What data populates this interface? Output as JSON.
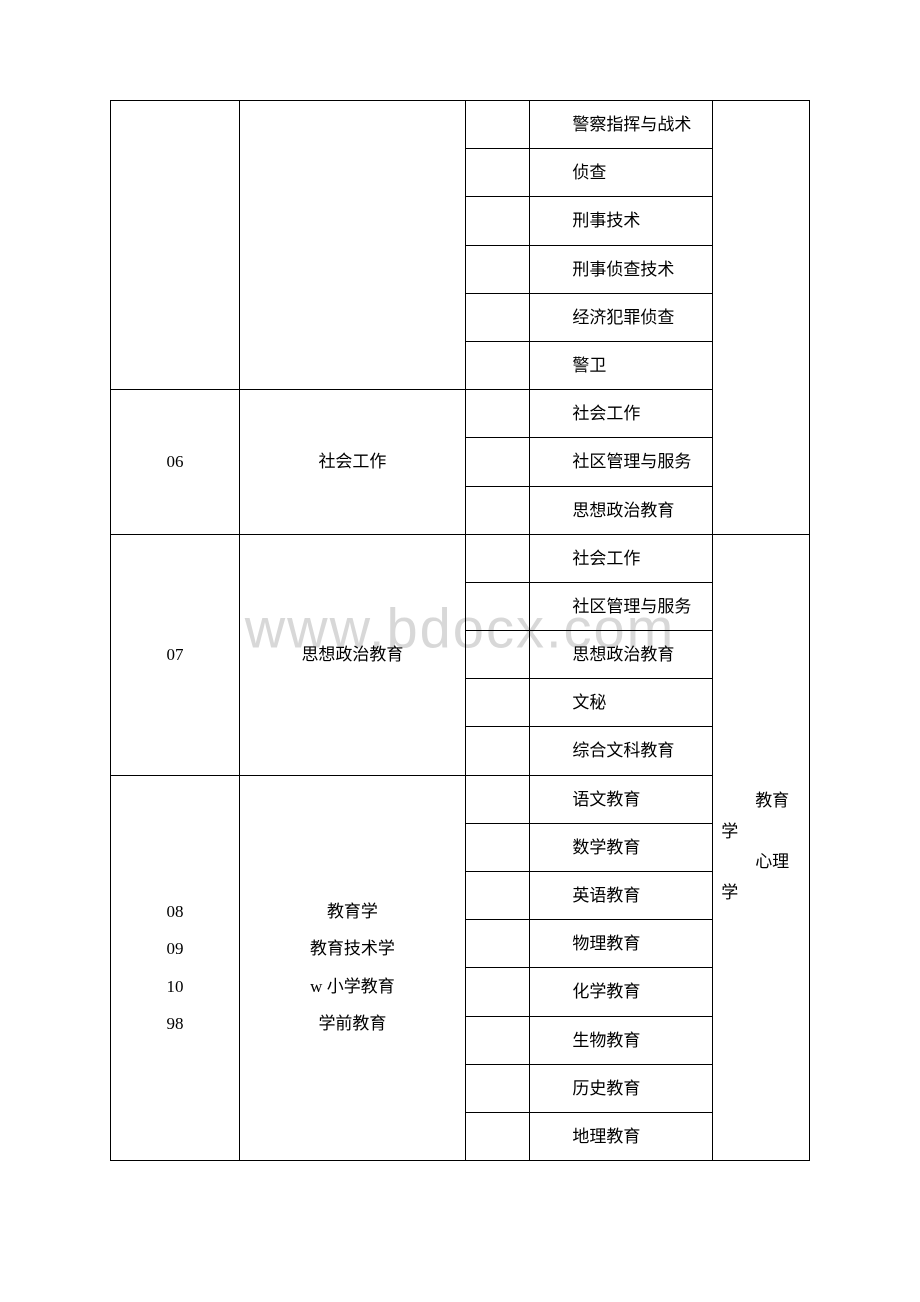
{
  "watermark": "www.bdocx.com",
  "groups": [
    {
      "code": "",
      "major": "",
      "subs": [
        "警察指挥与战术",
        "侦查",
        "刑事技术",
        "刑事侦查技术",
        "经济犯罪侦查",
        "警卫"
      ],
      "note": null
    },
    {
      "code": "06",
      "major": "社会工作",
      "subs": [
        "社会工作",
        "社区管理与服务",
        "思想政治教育"
      ],
      "note": null
    },
    {
      "code": "07",
      "major": "思想政治教育",
      "subs": [
        "社会工作",
        "社区管理与服务",
        "思想政治教育",
        "文秘",
        "综合文科教育"
      ],
      "note": {
        "text": "教育学\n心理学",
        "span": 13
      }
    },
    {
      "code": "08\n09\n10\n98",
      "major": "教育学\n教育技术学\nw 小学教育\n学前教育",
      "subs": [
        "语文教育",
        "数学教育",
        "英语教育",
        "物理教育",
        "化学教育",
        "生物教育",
        "历史教育",
        "地理教育"
      ],
      "note": null
    }
  ]
}
